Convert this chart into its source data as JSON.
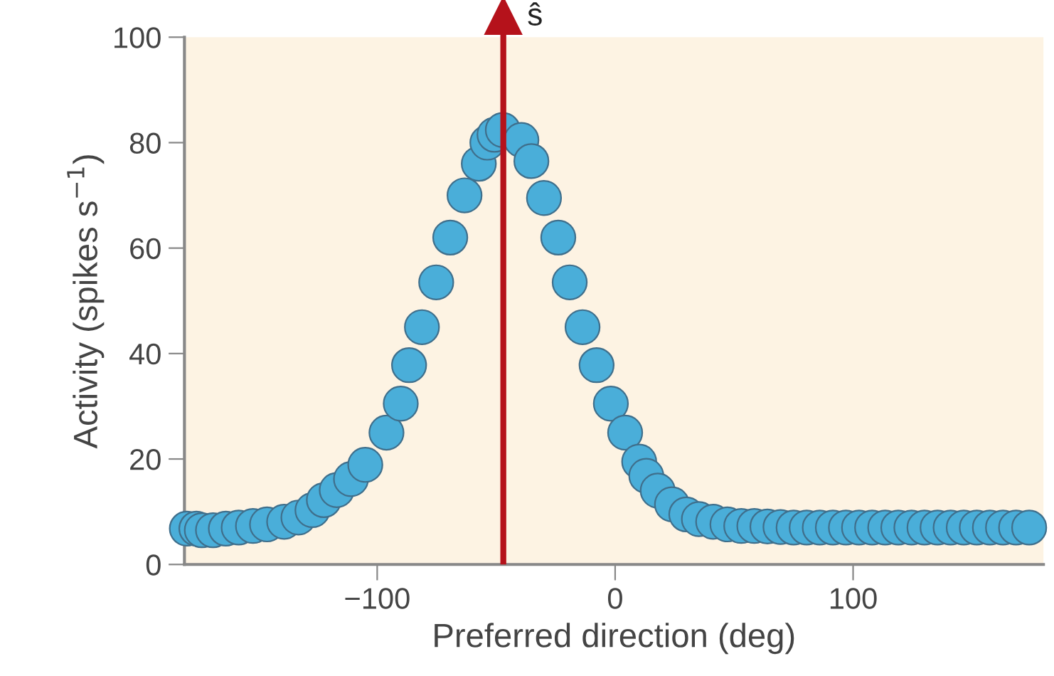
{
  "chart_data": {
    "type": "scatter",
    "xlabel": "Preferred direction (deg)",
    "ylabel": "Activity (spikes s$^{−1}$)",
    "series": [
      {
        "color": "#4aaed9",
        "x": [
          -180,
          -176,
          -173.7,
          -169,
          -163.6,
          -158.2,
          -152.2,
          -146.3,
          -139.1,
          -133.1,
          -127.2,
          -122.4,
          -117,
          -111,
          -105,
          -96.1,
          -90.1,
          -86.6,
          -81.2,
          -75.2,
          -69.3,
          -63.3,
          -57.3,
          -53.7,
          -50.7,
          -47.2,
          -39.4,
          -35.2,
          -29.9,
          -23.9,
          -19.1,
          -13.7,
          -7.8,
          -1.8,
          4.2,
          10.1,
          13.1,
          17.9,
          23.9,
          29.9,
          35.2,
          41.2,
          47.2,
          53,
          58.5,
          64,
          69.5,
          75,
          80.5,
          86,
          91.5,
          97,
          102.5,
          108,
          113.5,
          119,
          124.5,
          130,
          135.5,
          141,
          146.5,
          152,
          157.5,
          163,
          168.5,
          174
        ],
        "values": [
          6.8,
          6.8,
          6.5,
          6.5,
          6.8,
          7.0,
          7.3,
          7.6,
          8.1,
          8.9,
          10.3,
          12.2,
          14.1,
          16.2,
          18.9,
          25,
          30.5,
          37.8,
          45,
          53.5,
          62,
          70,
          76,
          80,
          81.5,
          82.4,
          80.5,
          76.5,
          69.5,
          62,
          53.5,
          45,
          37.8,
          30.5,
          25,
          19.5,
          16.8,
          14,
          11.4,
          9.5,
          8.6,
          8.1,
          7.6,
          7.3,
          7.3,
          7.2,
          7.1,
          7,
          7,
          7,
          7,
          7,
          7,
          7,
          7,
          7,
          7,
          7,
          7,
          7,
          7,
          7,
          7,
          7,
          7,
          7
        ]
      }
    ],
    "xlim": [
      -181,
      180
    ],
    "ylim": [
      0,
      100
    ],
    "xticks": [
      {
        "value": -100,
        "label": "−100"
      },
      0,
      100
    ],
    "yticks": [
      0,
      20,
      40,
      60,
      80,
      100
    ],
    "ref_lines": [
      {
        "axis": "x",
        "value": -47,
        "label": "ŝ",
        "color": "#b5121b"
      }
    ],
    "grid": false,
    "legend": false,
    "marker": "circle"
  }
}
